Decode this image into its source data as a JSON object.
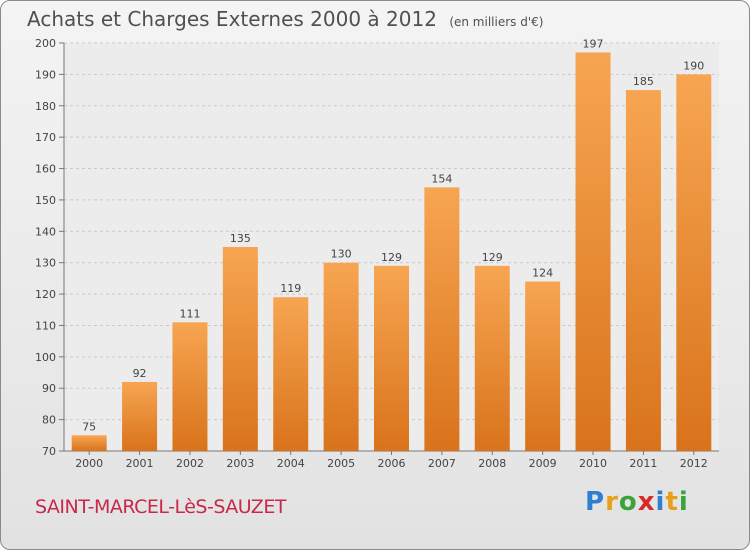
{
  "chart_data": {
    "type": "bar",
    "title": "Achats et Charges Externes 2000 à 2012",
    "unit_note": "(en milliers d'€)",
    "categories": [
      "2000",
      "2001",
      "2002",
      "2003",
      "2004",
      "2005",
      "2006",
      "2007",
      "2008",
      "2009",
      "2010",
      "2011",
      "2012"
    ],
    "values": [
      75,
      92,
      111,
      135,
      119,
      130,
      129,
      154,
      129,
      124,
      197,
      185,
      190
    ],
    "ylim": [
      70,
      200
    ],
    "yticks": [
      70,
      80,
      90,
      100,
      110,
      120,
      130,
      140,
      150,
      160,
      170,
      180,
      190,
      200
    ],
    "grid": true,
    "bar_color_top": "#f7a552",
    "bar_color_bottom": "#d9731b"
  },
  "footer": {
    "location": "SAINT-MARCEL-LèS-SAUZET",
    "logo_letters": [
      {
        "char": "P",
        "color": "#2f7fd0"
      },
      {
        "char": "r",
        "color": "#e8a01a"
      },
      {
        "char": "o",
        "color": "#3aa33a"
      },
      {
        "char": "x",
        "color": "#d8282a"
      },
      {
        "char": "i",
        "color": "#2f7fd0"
      },
      {
        "char": "t",
        "color": "#e8a01a"
      },
      {
        "char": "i",
        "color": "#3aa33a"
      }
    ]
  }
}
